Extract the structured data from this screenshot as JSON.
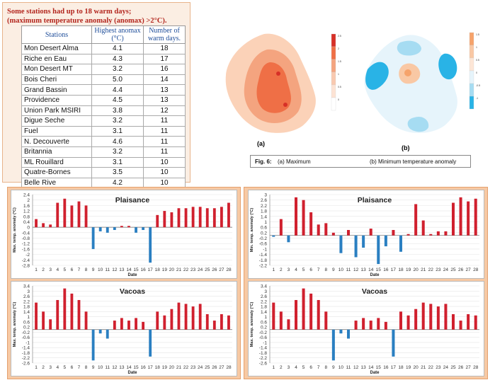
{
  "table": {
    "heading_line1": "Some stations had up to 18 warm days;",
    "heading_line2": "(maximum temperature anomaly (anomax) >2°C).",
    "headers": [
      "Stations",
      "Highest anomax (°C)",
      "Number of warm days."
    ],
    "rows": [
      [
        "Mon Desert Alma",
        "4.1",
        "18"
      ],
      [
        "Riche en Eau",
        "4.3",
        "17"
      ],
      [
        "Mon Desert MT",
        "3.2",
        "16"
      ],
      [
        "Bois Cheri",
        "5.0",
        "14"
      ],
      [
        "Grand Bassin",
        "4.4",
        "13"
      ],
      [
        "Providence",
        "4.5",
        "13"
      ],
      [
        "Union Park MSIRI",
        "3.8",
        "12"
      ],
      [
        "Digue Seche",
        "3.2",
        "11"
      ],
      [
        "Fuel",
        "3.1",
        "11"
      ],
      [
        "N. Decouverte",
        "4.6",
        "11"
      ],
      [
        "Britannia",
        "3.2",
        "11"
      ],
      [
        "ML Rouillard",
        "3.1",
        "10"
      ],
      [
        "Quatre-Bornes",
        "3.5",
        "10"
      ],
      [
        "Belle Rive",
        "4.2",
        "10"
      ]
    ]
  },
  "maps": {
    "label_a": "(a)",
    "label_b": "(b)",
    "legend_a": [
      "2.5",
      "2",
      "1.5",
      "1",
      "0.5",
      "0"
    ],
    "legend_b": [
      "1.5",
      "1",
      "0.5",
      "0",
      "-0.5",
      "-1"
    ],
    "colors_warm": [
      "#d73027",
      "#ef6f46",
      "#f4a47f",
      "#f9c9b0",
      "#fde3d4",
      "#ffffff"
    ],
    "colors_cool": [
      "#f6a36b",
      "#f9c8a4",
      "#fde6d6",
      "#e6f4fb",
      "#a6dcf2",
      "#29b3e6"
    ]
  },
  "caption": {
    "fig": "Fig. 6:",
    "a_text": "(a) Maximum",
    "b_text": "(b) Minimum temperature anomaly"
  },
  "colors": {
    "positive": "#d0202e",
    "negative": "#2a7fc1"
  },
  "chart_data": [
    {
      "type": "bar",
      "title": "Plaisance",
      "xlabel": "Date",
      "ylabel": "Max. temp. anomaly (°C)",
      "ylim": [
        -2.8,
        2.4
      ],
      "yticks": [
        "2.4",
        "2",
        "1.6",
        "1.2",
        "0.8",
        "0.4",
        "0",
        "-0.4",
        "-0.8",
        "-1.2",
        "-1.6",
        "-2",
        "-2.4",
        "-2.8"
      ],
      "categories": [
        "1",
        "2",
        "3",
        "4",
        "5",
        "6",
        "7",
        "8",
        "9",
        "10",
        "11",
        "12",
        "13",
        "14",
        "15",
        "16",
        "17",
        "18",
        "19",
        "20",
        "21",
        "22",
        "23",
        "24",
        "25",
        "26",
        "27",
        "28"
      ],
      "values": [
        0.6,
        0.3,
        0.2,
        1.8,
        2.1,
        1.6,
        1.9,
        1.6,
        -1.6,
        -0.3,
        -0.4,
        -0.2,
        0.1,
        0.1,
        -0.4,
        -0.2,
        -2.6,
        0.9,
        1.2,
        1.1,
        1.4,
        1.4,
        1.5,
        1.5,
        1.4,
        1.4,
        1.5,
        1.8
      ]
    },
    {
      "type": "bar",
      "title": "Vacoas",
      "xlabel": "Date",
      "ylabel": "Max. temp. anomaly (°C)",
      "ylim": [
        -2.6,
        3.4
      ],
      "yticks": [
        "3.4",
        "3",
        "2.6",
        "2.2",
        "1.8",
        "1.4",
        "1",
        "0.6",
        "0.2",
        "-0.2",
        "-0.6",
        "-1",
        "-1.4",
        "-1.8",
        "-2.2",
        "-2.6"
      ],
      "categories": [
        "1",
        "2",
        "3",
        "4",
        "5",
        "6",
        "7",
        "8",
        "9",
        "10",
        "11",
        "12",
        "13",
        "14",
        "15",
        "16",
        "17",
        "18",
        "19",
        "20",
        "21",
        "22",
        "23",
        "24",
        "25",
        "26",
        "27",
        "28"
      ],
      "values": [
        2.1,
        1.4,
        0.8,
        2.3,
        3.2,
        2.8,
        2.3,
        1.4,
        -2.4,
        -0.3,
        -0.7,
        0.7,
        0.9,
        0.7,
        0.9,
        0.6,
        -2.1,
        1.4,
        1.1,
        1.6,
        2.1,
        2.0,
        1.8,
        2.0,
        1.2,
        0.7,
        1.2,
        1.1
      ]
    },
    {
      "type": "bar",
      "title": "Plaisance",
      "xlabel": "Date",
      "ylabel": "Min. temp. anomaly (°C)",
      "ylim": [
        -2.2,
        3
      ],
      "yticks": [
        "3",
        "2.6",
        "2.2",
        "1.8",
        "1.4",
        "1",
        "0.6",
        "0.2",
        "-0.2",
        "-0.6",
        "-1",
        "-1.4",
        "-1.8",
        "-2.2"
      ],
      "categories": [
        "1",
        "2",
        "3",
        "4",
        "5",
        "6",
        "7",
        "8",
        "9",
        "10",
        "11",
        "12",
        "13",
        "14",
        "15",
        "16",
        "17",
        "18",
        "19",
        "20",
        "21",
        "22",
        "23",
        "24",
        "25",
        "26",
        "27",
        "28"
      ],
      "values": [
        -0.1,
        1.2,
        -0.5,
        2.8,
        2.6,
        1.7,
        0.8,
        0.9,
        0.2,
        -1.3,
        0.4,
        -1.6,
        -0.9,
        0.5,
        -2.1,
        -0.8,
        0.4,
        -1.2,
        0.1,
        2.3,
        1.1,
        0.1,
        0.3,
        0.3,
        2.4,
        2.8,
        2.5,
        2.7
      ]
    },
    {
      "type": "bar",
      "title": "Vacoas",
      "xlabel": "Date",
      "ylabel": "Max. temp. anomaly (°C)",
      "ylim": [
        -2.6,
        3.4
      ],
      "yticks": [
        "3.4",
        "3",
        "2.6",
        "2.2",
        "1.8",
        "1.4",
        "1",
        "0.6",
        "0.2",
        "-0.2",
        "-0.6",
        "-1",
        "-1.4",
        "-1.8",
        "-2.2",
        "-2.6"
      ],
      "categories": [
        "1",
        "2",
        "3",
        "4",
        "5",
        "6",
        "7",
        "8",
        "9",
        "10",
        "11",
        "12",
        "13",
        "14",
        "15",
        "16",
        "17",
        "18",
        "19",
        "20",
        "21",
        "22",
        "23",
        "24",
        "25",
        "26",
        "27",
        "28"
      ],
      "values": [
        2.1,
        1.4,
        0.8,
        2.3,
        3.2,
        2.8,
        2.3,
        1.4,
        -2.4,
        -0.3,
        -0.7,
        0.7,
        0.9,
        0.7,
        0.9,
        0.6,
        -2.1,
        1.4,
        1.1,
        1.6,
        2.1,
        2.0,
        1.8,
        2.0,
        1.2,
        0.7,
        1.2,
        1.1
      ]
    }
  ]
}
